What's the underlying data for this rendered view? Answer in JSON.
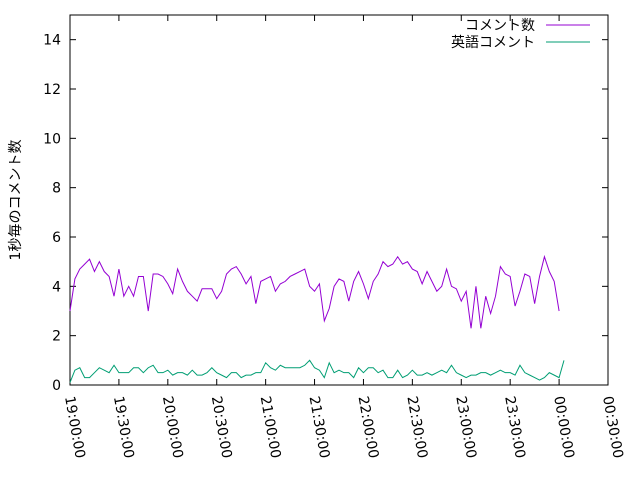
{
  "chart_data": {
    "type": "line",
    "title": "",
    "xlabel": "",
    "ylabel": "1秒毎のコメント数",
    "ylim": [
      0,
      15
    ],
    "yticks": [
      0,
      2,
      4,
      6,
      8,
      10,
      12,
      14
    ],
    "xlim": [
      "19:00:00",
      "00:30:00"
    ],
    "xticks": [
      "19:00:00",
      "19:30:00",
      "20:00:00",
      "20:30:00",
      "21:00:00",
      "21:30:00",
      "22:00:00",
      "22:30:00",
      "23:00:00",
      "23:30:00",
      "00:00:00",
      "00:30:00"
    ],
    "grid": false,
    "legend": "top-right",
    "series": [
      {
        "name": "コメント数",
        "color": "#9400d3",
        "x_start": "19:00:00",
        "x_step_seconds": 180,
        "values": [
          3.0,
          4.3,
          4.7,
          4.9,
          5.1,
          4.6,
          5.0,
          4.6,
          4.4,
          3.6,
          4.7,
          3.6,
          4.0,
          3.6,
          4.4,
          4.4,
          3.0,
          4.5,
          4.5,
          4.4,
          4.1,
          3.7,
          4.7,
          4.2,
          3.8,
          3.6,
          3.4,
          3.9,
          3.9,
          3.9,
          3.5,
          3.8,
          4.5,
          4.7,
          4.8,
          4.5,
          4.1,
          4.4,
          3.3,
          4.2,
          4.3,
          4.4,
          3.8,
          4.1,
          4.2,
          4.4,
          4.5,
          4.6,
          4.7,
          4.0,
          3.8,
          4.1,
          2.6,
          3.1,
          4.0,
          4.3,
          4.2,
          3.4,
          4.2,
          4.6,
          4.1,
          3.5,
          4.2,
          4.5,
          5.0,
          4.8,
          4.9,
          5.2,
          4.9,
          5.0,
          4.7,
          4.6,
          4.1,
          4.6,
          4.2,
          3.8,
          4.0,
          4.7,
          4.0,
          3.9,
          3.4,
          3.8,
          2.3,
          4.0,
          2.3,
          3.6,
          2.9,
          3.6,
          4.8,
          4.5,
          4.4,
          3.2,
          3.8,
          4.5,
          4.4,
          3.3,
          4.4,
          5.2,
          4.6,
          4.2,
          3.0
        ]
      },
      {
        "name": "英語コメント",
        "color": "#009e73",
        "x_start": "19:00:00",
        "x_step_seconds": 180,
        "values": [
          0.1,
          0.6,
          0.7,
          0.3,
          0.3,
          0.5,
          0.7,
          0.6,
          0.5,
          0.8,
          0.5,
          0.5,
          0.5,
          0.7,
          0.7,
          0.5,
          0.7,
          0.8,
          0.5,
          0.5,
          0.6,
          0.4,
          0.5,
          0.5,
          0.4,
          0.6,
          0.4,
          0.4,
          0.5,
          0.7,
          0.5,
          0.4,
          0.3,
          0.5,
          0.5,
          0.3,
          0.4,
          0.4,
          0.5,
          0.5,
          0.9,
          0.7,
          0.6,
          0.8,
          0.7,
          0.7,
          0.7,
          0.7,
          0.8,
          1.0,
          0.7,
          0.6,
          0.3,
          0.9,
          0.5,
          0.6,
          0.5,
          0.5,
          0.3,
          0.7,
          0.5,
          0.7,
          0.7,
          0.5,
          0.6,
          0.3,
          0.3,
          0.6,
          0.3,
          0.4,
          0.6,
          0.4,
          0.4,
          0.5,
          0.4,
          0.5,
          0.6,
          0.5,
          0.8,
          0.5,
          0.4,
          0.3,
          0.4,
          0.4,
          0.5,
          0.5,
          0.4,
          0.5,
          0.6,
          0.5,
          0.5,
          0.4,
          0.8,
          0.5,
          0.4,
          0.3,
          0.2,
          0.3,
          0.5,
          0.4,
          0.3,
          1.0
        ]
      }
    ]
  }
}
